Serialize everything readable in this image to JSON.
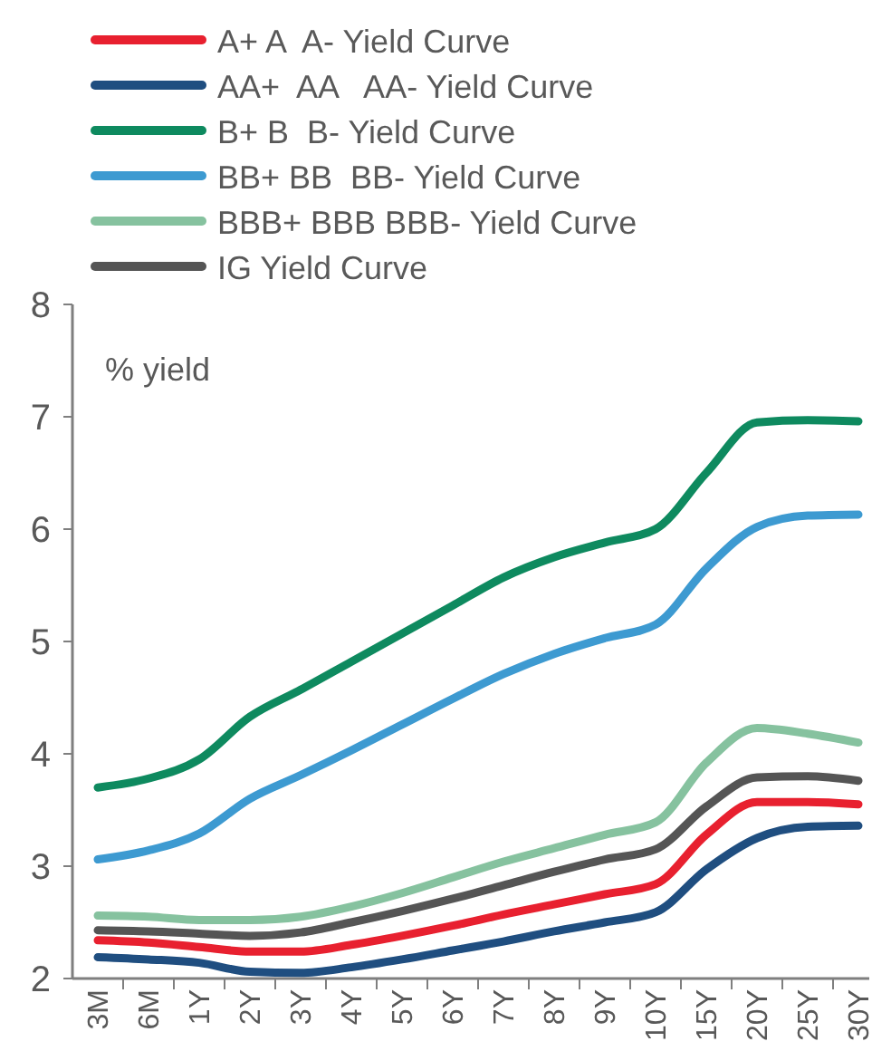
{
  "chart_data": {
    "type": "line",
    "ylabel": "% yield",
    "categories": [
      "3M",
      "6M",
      "1Y",
      "2Y",
      "3Y",
      "4Y",
      "5Y",
      "6Y",
      "7Y",
      "8Y",
      "9Y",
      "10Y",
      "15Y",
      "20Y",
      "25Y",
      "30Y"
    ],
    "ylim": [
      2,
      8
    ],
    "yticks": [
      2,
      3,
      4,
      5,
      6,
      7,
      8
    ],
    "grid": false,
    "legend": "top",
    "marker": "none",
    "line_style": "solid",
    "series": [
      {
        "name": "A+ A  A- Yield Curve",
        "color": "#e8202f",
        "values": [
          2.34,
          2.32,
          2.28,
          2.24,
          2.24,
          2.3,
          2.38,
          2.47,
          2.57,
          2.66,
          2.75,
          2.84,
          3.28,
          3.57,
          3.57,
          3.55
        ]
      },
      {
        "name": "AA+  AA   AA- Yield Curve",
        "color": "#1f4e80",
        "values": [
          2.19,
          2.17,
          2.14,
          2.06,
          2.05,
          2.1,
          2.17,
          2.25,
          2.33,
          2.42,
          2.5,
          2.59,
          2.97,
          3.25,
          3.35,
          3.36
        ]
      },
      {
        "name": "B+ B  B- Yield Curve",
        "color": "#0e8a5f",
        "values": [
          3.7,
          3.78,
          3.95,
          4.33,
          4.57,
          4.82,
          5.07,
          5.32,
          5.57,
          5.75,
          5.88,
          6.0,
          6.5,
          6.95,
          6.97,
          6.96
        ]
      },
      {
        "name": "BB+ BB  BB- Yield Curve",
        "color": "#3d9ad1",
        "values": [
          3.06,
          3.14,
          3.29,
          3.6,
          3.81,
          4.03,
          4.26,
          4.49,
          4.71,
          4.89,
          5.03,
          5.15,
          5.65,
          6.02,
          6.12,
          6.13
        ]
      },
      {
        "name": "BBB+ BBB BBB- Yield Curve",
        "color": "#86c29f",
        "values": [
          2.56,
          2.55,
          2.52,
          2.52,
          2.55,
          2.64,
          2.76,
          2.9,
          3.04,
          3.16,
          3.28,
          3.39,
          3.92,
          4.23,
          4.18,
          4.1
        ]
      },
      {
        "name": "IG Yield Curve",
        "color": "#555555",
        "values": [
          2.43,
          2.42,
          2.4,
          2.38,
          2.41,
          2.5,
          2.6,
          2.71,
          2.83,
          2.95,
          3.06,
          3.15,
          3.53,
          3.79,
          3.8,
          3.76
        ]
      }
    ]
  }
}
